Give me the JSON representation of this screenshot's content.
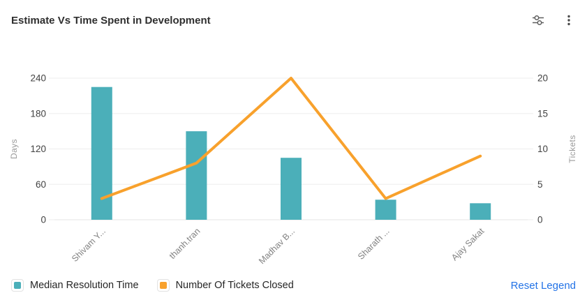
{
  "header": {
    "title": "Estimate Vs Time Spent in Development",
    "toolbar": {
      "filter_icon": "sliders-icon",
      "menu_icon": "kebab-menu-icon"
    }
  },
  "chart_data": {
    "type": "combo-bar-line",
    "categories": [
      "Shivam Y...",
      "thanh.tran",
      "Madhav B...",
      "Sharath ...",
      "Ajay Sakat"
    ],
    "series": [
      {
        "name": "Median Resolution Time",
        "type": "bar",
        "axis": "left",
        "values": [
          225,
          150,
          105,
          34,
          28
        ],
        "color": "#4BAFB9"
      },
      {
        "name": "Number Of Tickets Closed",
        "type": "line",
        "axis": "right",
        "values": [
          3,
          8,
          20,
          3,
          9
        ],
        "color": "#F8A12C"
      }
    ],
    "left_axis": {
      "label": "Days",
      "ticks": [
        0,
        60,
        120,
        180,
        240
      ],
      "min": 0,
      "max": 240
    },
    "right_axis": {
      "label": "Tickets",
      "ticks": [
        0,
        5,
        10,
        15,
        20
      ],
      "min": 0,
      "max": 20
    },
    "grid": true,
    "legend_position": "bottom"
  },
  "legend": {
    "items": [
      {
        "label": "Median Resolution Time",
        "color": "#4BAFB9"
      },
      {
        "label": "Number Of Tickets Closed",
        "color": "#F8A12C"
      }
    ],
    "reset_label": "Reset Legend"
  },
  "colors": {
    "bar_teal": "#4BAFB9",
    "line_orange": "#F8A12C",
    "link_blue": "#2272E6",
    "gridline": "#ededed",
    "axis_baseline": "#e4e4e4",
    "tick_text": "#424242",
    "axis_name_text": "#9a9a9a",
    "category_text": "#828282",
    "icon_gray": "#5e5e5e"
  }
}
